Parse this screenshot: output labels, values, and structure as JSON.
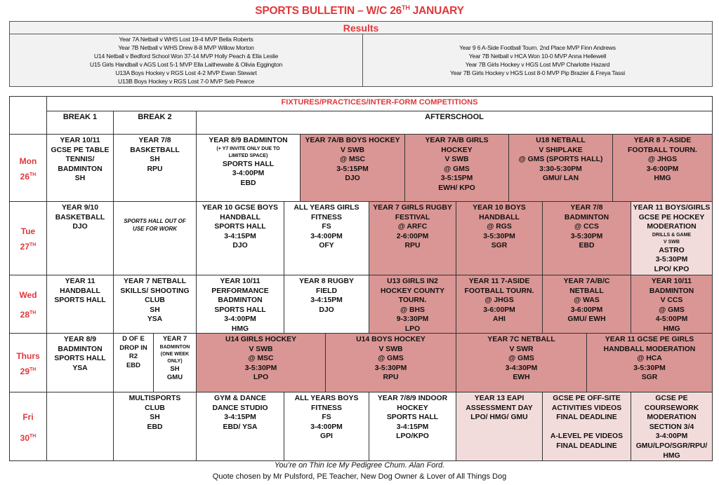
{
  "title": {
    "main": "SPORTS BULLETIN – W/C 26",
    "sup": "TH",
    "rest": " JANUARY"
  },
  "results": {
    "heading": "Results",
    "left": [
      "Year 7A Netball v WHS Lost 19-4 MVP Bella Roberts",
      "Year 7B Netball v WHS Drew 8-8 MVP Willow Morton",
      "U14 Netball v Bedford School Won 37-14 MVP Holly Peach & Ella Leslie",
      "U15 Girls Handball v AGS Lost 5-1 MVP Ella Laithewaite & Olivia Eggington",
      "U13A Boys Hockey v RGS Lost 4-2 MVP Ewan Stewart",
      "U13B Boys Hockey v RGS Lost 7-0 MVP Seb Pearce"
    ],
    "right": [
      "Year 9 6 A-Side Football Tourn. 2nd Place MVP Finn Andrews",
      "Year 7B Netball v HCA Won 10-0 MVP Anna Hellewell",
      "Year 7B Girls Hockey v HGS Lost MVP Charlotte Hazard",
      "Year 7B Girls Hockey v HGS Lost 8-0 MVP Pip Brazier & Freya Tassi"
    ]
  },
  "fixtures": {
    "heading": "FIXTURES/PRACTICES/INTER-FORM COMPETITIONS",
    "columns": {
      "break1": "BREAK 1",
      "break2": "BREAK 2",
      "afterschool": "AFTERSCHOOL"
    },
    "days": [
      {
        "name": "Mon",
        "date": "26",
        "sup": "TH"
      },
      {
        "name": "Tue",
        "date": "27",
        "sup": "TH"
      },
      {
        "name": "Wed",
        "date": "28",
        "sup": "TH"
      },
      {
        "name": "Thurs",
        "date": "29",
        "sup": "TH"
      },
      {
        "name": "Fri",
        "date": "30",
        "sup": "TH"
      }
    ],
    "mon": [
      [
        "YEAR 10/11",
        "GCSE PE TABLE",
        "TENNIS/",
        "BADMINTON",
        "SH"
      ],
      [
        "YEAR 7/8",
        "BASKETBALL",
        "SH",
        "RPU"
      ],
      [
        "YEAR 8/9 BADMINTON",
        "(+ Y7 INVITE ONLY DUE TO",
        "LIMITED SPACE)",
        "SPORTS HALL",
        "3-4:00PM",
        "EBD"
      ],
      [
        "YEAR 7A/B BOYS HOCKEY",
        "V SWB",
        "@ MSC",
        "3-5:15PM",
        "DJO"
      ],
      [
        "YEAR 7A/B GIRLS",
        "HOCKEY",
        "V SWB",
        "@ GMS",
        "3-5:15PM",
        "EWH/ KPO"
      ],
      [
        "U18 NETBALL",
        "V SHIPLAKE",
        "@ GMS (SPORTS HALL)",
        "3:30-5:30PM",
        "GMU/ LAN"
      ],
      [
        "YEAR 8 7-ASIDE",
        "FOOTBALL TOURN.",
        "@ JHGS",
        "3-6:00PM",
        "HMG"
      ]
    ],
    "tue": [
      [
        "YEAR 9/10",
        "BASKETBALL",
        "DJO"
      ],
      [
        "SPORTS HALL OUT OF",
        "USE FOR WORK"
      ],
      [
        "YEAR 10 GCSE BOYS",
        "HANDBALL",
        "SPORTS HALL",
        "3-4:15PM",
        "DJO"
      ],
      [
        "ALL YEARS GIRLS",
        "FITNESS",
        "FS",
        "3-4:00PM",
        "OFY"
      ],
      [
        "YEAR 7 GIRLS RUGBY",
        "FESTIVAL",
        "@ ARFC",
        "2-6:00PM",
        "RPU"
      ],
      [
        "YEAR 10 BOYS",
        "HANDBALL",
        "@ RGS",
        "3-5:30PM",
        "SGR"
      ],
      [
        "YEAR 7/8",
        "BADMINTON",
        "@ CCS",
        "3-5:30PM",
        "EBD"
      ],
      [
        "YEAR 11 BOYS/GIRLS",
        "GCSE PE HOCKEY",
        "MODERATION",
        "DRILLS & GAME",
        "V SWB",
        "ASTRO",
        "3-5:30PM",
        "LPO/ KPO"
      ]
    ],
    "wed": [
      [
        "YEAR 11",
        "HANDBALL",
        "SPORTS HALL"
      ],
      [
        "YEAR 7 NETBALL",
        "SKILLS/ SHOOTING",
        "CLUB",
        "SH",
        "YSA"
      ],
      [
        "YEAR 10/11",
        "PERFORMANCE",
        "BADMINTON",
        "SPORTS HALL",
        "3-4:00PM",
        "HMG"
      ],
      [
        "YEAR 8 RUGBY",
        "FIELD",
        "3-4:15PM",
        "DJO"
      ],
      [
        "U13 GIRLS IN2",
        "HOCKEY COUNTY",
        "TOURN.",
        "@ BHS",
        "9-3:30PM",
        "LPO"
      ],
      [
        "YEAR 11 7-ASIDE",
        "FOOTBALL TOURN.",
        "@ JHGS",
        "3-6:00PM",
        "AHI"
      ],
      [
        "YEAR 7A/B/C",
        "NETBALL",
        "@ WAS",
        "3-6:00PM",
        "GMU/ EWH"
      ],
      [
        "YEAR 10/11",
        "BADMINTON",
        "V CCS",
        "@ GMS",
        "4-5:00PM",
        "HMG"
      ]
    ],
    "thu": [
      [
        "YEAR 8/9",
        "BADMINTON",
        "SPORTS HALL",
        "YSA"
      ],
      [
        "D OF E",
        "DROP IN",
        "R2",
        "EBD"
      ],
      [
        "YEAR 7",
        "BADMINTON",
        "(ONE WEEK",
        "ONLY)",
        "SH",
        "GMU"
      ],
      [
        "U14 GIRLS HOCKEY",
        "V SWB",
        "@ MSC",
        "3-5:30PM",
        "LPO"
      ],
      [
        "U14 BOYS HOCKEY",
        "V SWB",
        "@ GMS",
        "3-5:30PM",
        "RPU"
      ],
      [
        "YEAR 7C NETBALL",
        "V SWR",
        "@ GMS",
        "3-4:30PM",
        "EWH"
      ],
      [
        "YEAR 11 GCSE PE GIRLS",
        "HANDBALL MODERATION",
        "@ HCA",
        "3-5:30PM",
        "SGR"
      ]
    ],
    "fri": [
      [
        "MULTISPORTS",
        "CLUB",
        "SH",
        "EBD"
      ],
      [
        "GYM & DANCE",
        "DANCE STUDIO",
        "3-4:15PM",
        "EBD/ YSA"
      ],
      [
        "ALL YEARS BOYS",
        "FITNESS",
        "FS",
        "3-4:00PM",
        "GPI"
      ],
      [
        "YEAR 7/8/9 INDOOR",
        "HOCKEY",
        "SPORTS HALL",
        "3-4:15PM",
        "LPO/KPO"
      ],
      [
        "YEAR 13 EAPI",
        "ASSESSMENT DAY",
        "LPO/ HMG/ GMU"
      ],
      [
        "GCSE PE OFF-SITE",
        "ACTIVITIES VIDEOS",
        "FINAL DEADLINE",
        "",
        "A-LEVEL PE VIDEOS",
        "FINAL DEADLINE"
      ],
      [
        "GCSE PE",
        "COURSEWORK",
        "MODERATION",
        "SECTION 3/4",
        "3-4:00PM",
        "GMU/LPO/SGR/RPU/",
        "HMG"
      ]
    ]
  },
  "footer": {
    "quote": "You’re on Thin Ice My Pedigree Chum. Alan Ford.",
    "credit": "Quote chosen by Mr Pulsford, PE Teacher, New Dog Owner & Lover of All Things Dog"
  },
  "colors": {
    "accent": "#e0373a",
    "fixture": "#d99694",
    "event": "#f2dcdb"
  }
}
